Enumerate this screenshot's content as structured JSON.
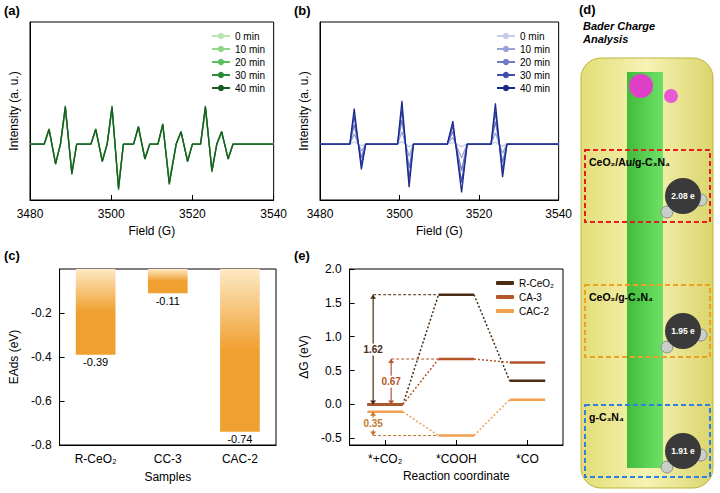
{
  "chart_data": [
    {
      "type": "line",
      "panel": "(a)",
      "xlabel": "Field (G)",
      "ylabel": "Intensity (a. u.)",
      "x": [
        3480,
        3483.5,
        3484.7,
        3486.3,
        3487.5,
        3488.7,
        3490.3,
        3491.5,
        3495,
        3496.2,
        3497.8,
        3499,
        3500.2,
        3501.8,
        3503,
        3505.5,
        3506.7,
        3508.3,
        3509.5,
        3511.5,
        3512.7,
        3514.3,
        3516,
        3517.2,
        3518.8,
        3520,
        3522,
        3523.2,
        3524.8,
        3526,
        3527.2,
        3528.8,
        3530,
        3540
      ],
      "series": [
        {
          "name": "0 min",
          "color": "#b8e6b0",
          "values": [
            0,
            0,
            0.26,
            -0.34,
            0,
            0.64,
            -0.51,
            0,
            0,
            0.26,
            -0.3,
            0,
            0.64,
            -0.77,
            0,
            0,
            0.3,
            -0.26,
            0,
            0,
            0.34,
            -0.68,
            0,
            0.21,
            -0.3,
            0,
            0,
            0.64,
            -0.47,
            0,
            0.21,
            -0.26,
            0,
            0
          ]
        },
        {
          "name": "10 min",
          "color": "#8fd68a",
          "values": [
            0,
            0,
            0.27,
            -0.36,
            0,
            0.68,
            -0.54,
            0,
            0,
            0.27,
            -0.32,
            0,
            0.68,
            -0.81,
            0,
            0,
            0.32,
            -0.27,
            0,
            0,
            0.36,
            -0.72,
            0,
            0.23,
            -0.32,
            0,
            0,
            0.68,
            -0.5,
            0,
            0.23,
            -0.27,
            0,
            0
          ]
        },
        {
          "name": "20 min",
          "color": "#5cbf5c",
          "values": [
            0,
            0,
            0.29,
            -0.38,
            0,
            0.71,
            -0.57,
            0,
            0,
            0.29,
            -0.33,
            0,
            0.71,
            -0.86,
            0,
            0,
            0.33,
            -0.29,
            0,
            0,
            0.38,
            -0.76,
            0,
            0.24,
            -0.33,
            0,
            0,
            0.71,
            -0.52,
            0,
            0.24,
            -0.29,
            0,
            0
          ]
        },
        {
          "name": "30 min",
          "color": "#2e8b3e",
          "values": [
            0,
            0,
            0.3,
            -0.4,
            0,
            0.75,
            -0.6,
            0,
            0,
            0.3,
            -0.35,
            0,
            0.75,
            -0.9,
            0,
            0,
            0.35,
            -0.3,
            0,
            0,
            0.4,
            -0.8,
            0,
            0.25,
            -0.35,
            0,
            0,
            0.75,
            -0.55,
            0,
            0.25,
            -0.3,
            0,
            0
          ]
        },
        {
          "name": "40 min",
          "color": "#1a5c24",
          "values": [
            0,
            0,
            0.29,
            -0.39,
            0,
            0.73,
            -0.58,
            0,
            0,
            0.29,
            -0.34,
            0,
            0.73,
            -0.87,
            0,
            0,
            0.34,
            -0.29,
            0,
            0,
            0.39,
            -0.78,
            0,
            0.24,
            -0.34,
            0,
            0,
            0.73,
            -0.53,
            0,
            0.24,
            -0.29,
            0,
            0
          ]
        }
      ],
      "xlim": [
        3480,
        3540
      ],
      "xticks": [
        3480,
        3500,
        3520,
        3540
      ],
      "ylim": [
        -1.1,
        2.4
      ],
      "tick_labels": "x",
      "legend": "upper right",
      "grid": false
    },
    {
      "type": "line",
      "panel": "(b)",
      "xlabel": "Field (G)",
      "ylabel": "Intensity (a. u.)",
      "x": [
        3480,
        3487.5,
        3488.6,
        3490.4,
        3491.5,
        3499.5,
        3500.6,
        3502.4,
        3503.5,
        3512,
        3513.4,
        3515.6,
        3517,
        3523,
        3524.1,
        3525.9,
        3527,
        3540
      ],
      "series": [
        {
          "name": "0 min",
          "color": "#c5cbe8",
          "values": [
            0,
            0,
            0.04,
            -0.03,
            0,
            0,
            0.05,
            -0.05,
            0,
            0,
            0.03,
            -0.05,
            0,
            0,
            0.04,
            -0.04,
            0,
            0
          ]
        },
        {
          "name": "10 min",
          "color": "#9aa3d6",
          "values": [
            0,
            0,
            0.2,
            -0.14,
            0,
            0,
            0.24,
            -0.24,
            0,
            0,
            0.13,
            -0.27,
            0,
            0,
            0.22,
            -0.18,
            0,
            0
          ]
        },
        {
          "name": "20 min",
          "color": "#6f7cc4",
          "values": [
            0,
            0,
            0.38,
            -0.27,
            0,
            0,
            0.47,
            -0.47,
            0,
            0,
            0.25,
            -0.52,
            0,
            0,
            0.44,
            -0.36,
            0,
            0
          ]
        },
        {
          "name": "30 min",
          "color": "#3f4fae",
          "values": [
            0,
            0,
            0.56,
            -0.4,
            0,
            0,
            0.68,
            -0.68,
            0,
            0,
            0.36,
            -0.76,
            0,
            0,
            0.64,
            -0.52,
            0,
            0
          ]
        },
        {
          "name": "40 min",
          "color": "#1a2a8c",
          "values": [
            0,
            0,
            0.7,
            -0.5,
            0,
            0,
            0.85,
            -0.85,
            0,
            0,
            0.45,
            -0.95,
            0,
            0,
            0.8,
            -0.65,
            0,
            0
          ]
        }
      ],
      "xlim": [
        3480,
        3540
      ],
      "xticks": [
        3480,
        3500,
        3520,
        3540
      ],
      "ylim": [
        -1.1,
        2.4
      ],
      "tick_labels": "x",
      "legend": "upper right",
      "grid": false
    },
    {
      "type": "bar",
      "panel": "(c)",
      "xlabel": "Samples",
      "ylabel": "EAds (eV)",
      "categories": [
        "R-CeO₂",
        "CC-3",
        "CAC-2"
      ],
      "values": [
        -0.39,
        -0.11,
        -0.74
      ],
      "color": "#f0a030",
      "ylim": [
        -0.8,
        0
      ],
      "yticks": [
        -0.8,
        -0.6,
        -0.4,
        -0.2
      ],
      "data_labels": true,
      "grid": false
    },
    {
      "type": "energy",
      "panel": "(e)",
      "xlabel": "Reaction coordinate",
      "ylabel": "ΔG (eV)",
      "categories": [
        "*+CO₂",
        "*COOH",
        "*CO"
      ],
      "series": [
        {
          "name": "R-CeO₂",
          "color": "#4a2c12",
          "values": [
            0,
            1.62,
            0.35
          ]
        },
        {
          "name": "CA-3",
          "color": "#b5562a",
          "values": [
            0,
            0.67,
            0.62
          ]
        },
        {
          "name": "CAC-2",
          "color": "#f0a050",
          "values": [
            -0.11,
            -0.46,
            0.07
          ]
        }
      ],
      "annotations": [
        {
          "label": "1.62",
          "from": 0,
          "to": 1.62,
          "color": "#4a2c12"
        },
        {
          "label": "0.67",
          "from": 0,
          "to": 0.67,
          "color": "#b5562a"
        },
        {
          "label": "0.35",
          "from": -0.11,
          "to": -0.46,
          "color": "#c07a30"
        }
      ],
      "ylim": [
        -0.6,
        2.0
      ],
      "yticks": [
        -0.5,
        {
          "value": 0,
          "label": "0.0"
        },
        0.5,
        {
          "value": 1,
          "label": "1.0"
        },
        1.5,
        {
          "value": 2,
          "label": "2.0"
        }
      ],
      "legend": "upper right",
      "grid": false
    }
  ],
  "diagram": {
    "panel": "(d)",
    "title": "Bader Charge Analysis",
    "boxes": [
      {
        "label": "CeO₂/Au/g-C₃N₄",
        "charge": "2.08 e",
        "color": "#e02020"
      },
      {
        "label": "CeO₂/g-C₃N₄",
        "charge": "1.95 e",
        "color": "#f0a020"
      },
      {
        "label": "g-C₃N₄",
        "charge": "1.91 e",
        "color": "#3080e0"
      }
    ]
  }
}
